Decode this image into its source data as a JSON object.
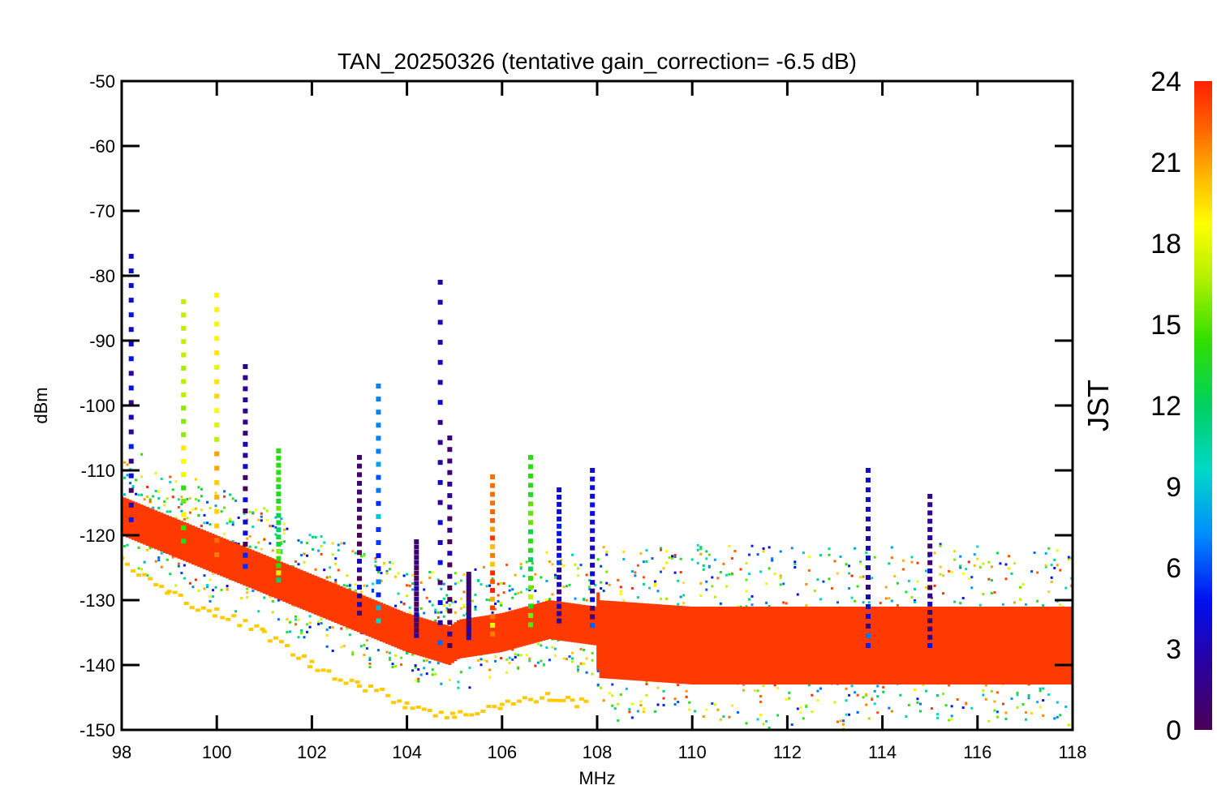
{
  "chart_data": {
    "type": "scatter",
    "title": "TAN_20250326 (tentative gain_correction= -6.5 dB)",
    "xlabel": "MHz",
    "ylabel": "dBm",
    "xlim": [
      98,
      118
    ],
    "ylim": [
      -150,
      -50
    ],
    "x_ticks": [
      "98",
      "100",
      "102",
      "104",
      "106",
      "108",
      "110",
      "112",
      "114",
      "116",
      "118"
    ],
    "y_ticks": [
      "-50",
      "-60",
      "-70",
      "-80",
      "-90",
      "-100",
      "-110",
      "-120",
      "-130",
      "-140",
      "-150"
    ],
    "grid": false,
    "colorbar": {
      "label": "JST",
      "range": [
        0,
        24
      ],
      "ticks": [
        "24",
        "21",
        "18",
        "15",
        "12",
        "9",
        "6",
        "3",
        "0"
      ],
      "colormap": "rainbow"
    },
    "noise_floor": {
      "x": [
        98,
        99,
        100,
        101,
        102,
        103,
        104,
        104.9,
        105.1,
        106,
        107,
        108,
        108.05,
        110,
        112,
        114,
        116,
        118
      ],
      "y": [
        -117,
        -120,
        -123,
        -126,
        -129,
        -132,
        -135,
        -137,
        -136,
        -135,
        -133,
        -134,
        -136,
        -137,
        -137,
        -137,
        -137,
        -137
      ]
    },
    "signals": [
      {
        "x": 98.2,
        "peak_dBm": -77,
        "color_jst": 4
      },
      {
        "x": 99.3,
        "peak_dBm": -84,
        "color_jst": 17
      },
      {
        "x": 100.0,
        "peak_dBm": -83,
        "color_jst": 19
      },
      {
        "x": 100.6,
        "peak_dBm": -94,
        "color_jst": 2
      },
      {
        "x": 101.3,
        "peak_dBm": -107,
        "color_jst": 14
      },
      {
        "x": 103.0,
        "peak_dBm": -108,
        "color_jst": 1
      },
      {
        "x": 103.4,
        "peak_dBm": -97,
        "color_jst": 7
      },
      {
        "x": 104.2,
        "peak_dBm": -121,
        "color_jst": 1
      },
      {
        "x": 104.7,
        "peak_dBm": -81,
        "color_jst": 3
      },
      {
        "x": 104.9,
        "peak_dBm": -105,
        "color_jst": 1
      },
      {
        "x": 105.3,
        "peak_dBm": -126,
        "color_jst": 1
      },
      {
        "x": 105.8,
        "peak_dBm": -111,
        "color_jst": 22
      },
      {
        "x": 106.6,
        "peak_dBm": -108,
        "color_jst": 14
      },
      {
        "x": 107.2,
        "peak_dBm": -113,
        "color_jst": 4
      },
      {
        "x": 107.9,
        "peak_dBm": -110,
        "color_jst": 4
      },
      {
        "x": 113.7,
        "peak_dBm": -110,
        "color_jst": 4
      },
      {
        "x": 115.0,
        "peak_dBm": -114,
        "color_jst": 2
      }
    ],
    "lower_trace": {
      "color_jst": 20,
      "x": [
        98,
        99,
        100,
        101,
        102,
        103,
        104,
        105,
        106,
        107,
        107.8
      ],
      "y": [
        -124,
        -129,
        -132,
        -135,
        -140,
        -143,
        -146,
        -148,
        -146,
        -145,
        -146
      ]
    }
  }
}
